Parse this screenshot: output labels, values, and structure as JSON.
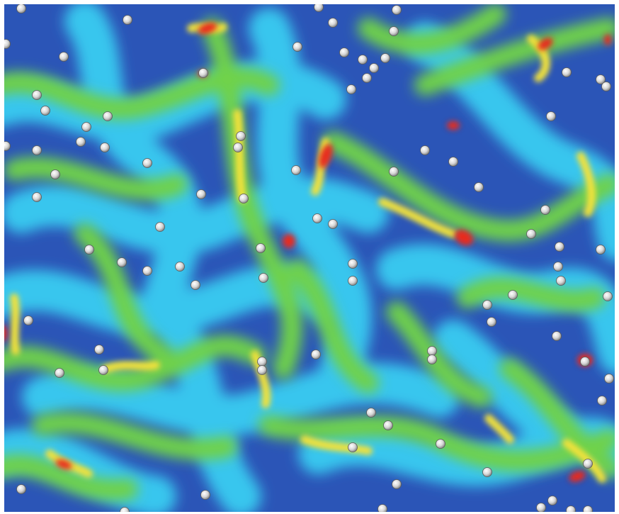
{
  "image": {
    "subject": "turbulent-flow-field-with-particles",
    "colormap": [
      "#2b55b7",
      "#39c6ee",
      "#6fd24a",
      "#f2e23a",
      "#e82a1f"
    ],
    "background_color": "#ffffff",
    "particle_color": "#e8e8e8",
    "particle_count": 90
  }
}
